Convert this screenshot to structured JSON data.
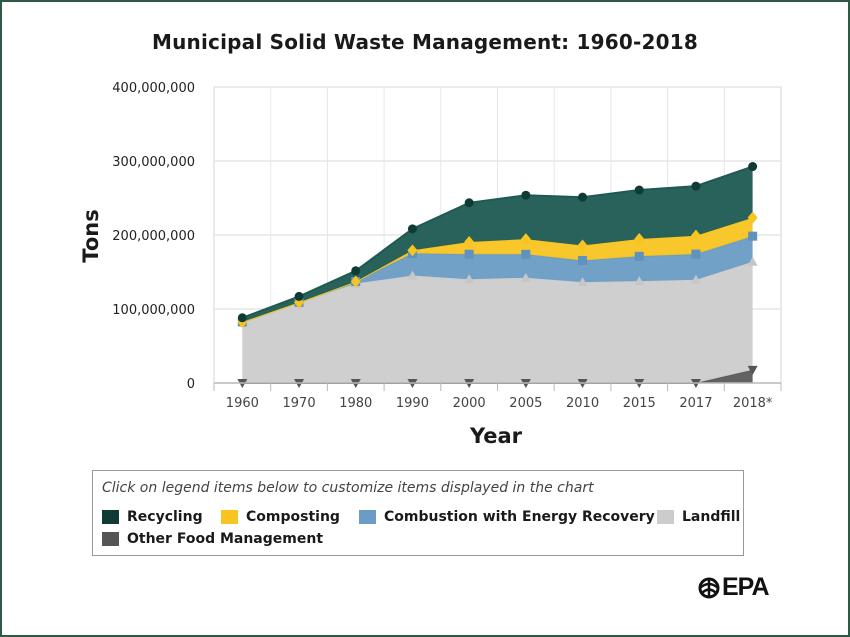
{
  "chart_data": {
    "type": "area",
    "title": "Municipal Solid Waste Management: 1960-2018",
    "xlabel": "Year",
    "ylabel": "Tons",
    "ylim": [
      0,
      400000000
    ],
    "yticks": [
      0,
      100000000,
      200000000,
      300000000,
      400000000
    ],
    "ytick_labels": [
      "0",
      "100,000,000",
      "200,000,000",
      "300,000,000",
      "400,000,000"
    ],
    "categories": [
      "1960",
      "1970",
      "1980",
      "1990",
      "2000",
      "2005",
      "2010",
      "2015",
      "2017",
      "2018*"
    ],
    "stacked": true,
    "series": [
      {
        "name": "Other Food Management",
        "color": "#5a5a5a",
        "marker": "triangle-down",
        "values": [
          0,
          0,
          0,
          0,
          0,
          0,
          0,
          0,
          0,
          17700000
        ]
      },
      {
        "name": "Landfill",
        "color": "#cccccc",
        "marker": "triangle-up",
        "values": [
          82500000,
          108500000,
          134400000,
          145300000,
          140300000,
          142300000,
          136300000,
          137700000,
          139600000,
          146100000
        ]
      },
      {
        "name": "Combustion with Energy Recovery",
        "color": "#6a9cc5",
        "marker": "square",
        "values": [
          0,
          500000,
          2750000,
          29800000,
          33700000,
          31600000,
          29300000,
          33500000,
          34600000,
          34600000
        ]
      },
      {
        "name": "Composting",
        "color": "#f7c421",
        "marker": "diamond",
        "values": [
          0,
          0,
          0,
          4200000,
          16500000,
          20600000,
          20200000,
          23400000,
          24900000,
          25000000
        ]
      },
      {
        "name": "Recycling",
        "color": "#1e5a52",
        "marker": "circle",
        "values": [
          5600000,
          8000000,
          14500000,
          29000000,
          53000000,
          59300000,
          65300000,
          66200000,
          67000000,
          69100000
        ]
      }
    ],
    "legend_order": [
      "Recycling",
      "Composting",
      "Combustion with Energy Recovery",
      "Landfill",
      "Other Food Management"
    ],
    "grid": true,
    "legend_position": "bottom"
  },
  "legend": {
    "hint": "Click on legend items below to customize items displayed in the chart",
    "items": [
      {
        "label": "Recycling",
        "color": "#0e3b36"
      },
      {
        "label": "Composting",
        "color": "#f7c421"
      },
      {
        "label": "Combustion with Energy Recovery",
        "color": "#6a9cc5"
      },
      {
        "label": "Landfill",
        "color": "#cccccc"
      },
      {
        "label": "Other Food Management",
        "color": "#555555"
      }
    ]
  },
  "logo": {
    "text": "EPA"
  }
}
